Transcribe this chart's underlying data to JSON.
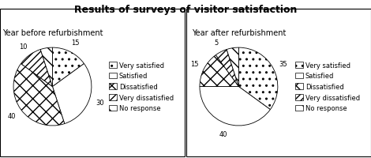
{
  "title": "Results of surveys of visitor satisfaction",
  "left_title": "Year before refurbishment",
  "right_title": "Year after refurbishment",
  "categories": [
    "Very satisfied",
    "Satisfied",
    "Dissatisfied",
    "Very dissatisfied",
    "No response"
  ],
  "before": [
    15,
    30,
    40,
    10,
    5
  ],
  "after": [
    35,
    40,
    15,
    5,
    5
  ],
  "hatch_patterns": [
    "..",
    "====",
    "xxxx",
    "////",
    "\\\\"
  ],
  "facecolors": [
    "white",
    "white",
    "white",
    "white",
    "white"
  ],
  "edgecolor": "black",
  "background": "white",
  "title_fontsize": 9,
  "subtitle_fontsize": 7,
  "label_fontsize": 6,
  "legend_fontsize": 6
}
